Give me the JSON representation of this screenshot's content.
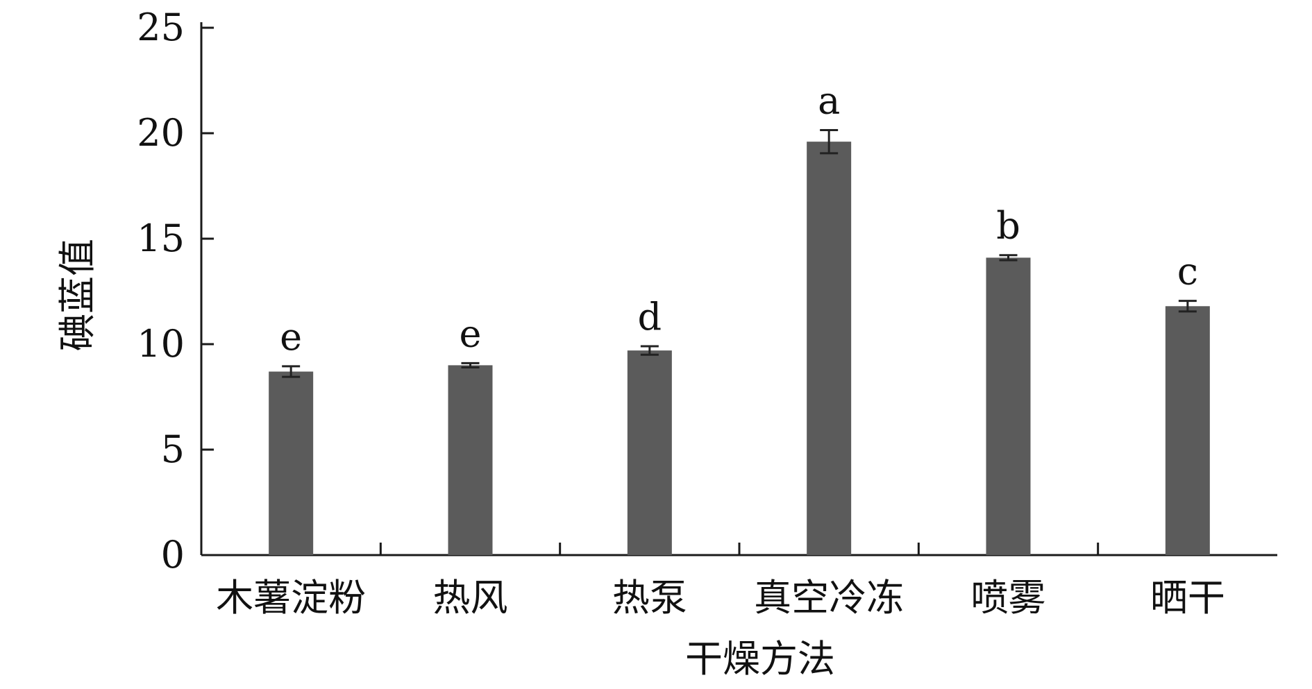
{
  "chart_data": {
    "type": "bar",
    "categories": [
      "木薯淀粉",
      "热风",
      "热泵",
      "真空冷冻",
      "喷雾",
      "晒干"
    ],
    "values": [
      8.7,
      9.0,
      9.7,
      19.6,
      14.1,
      11.8
    ],
    "errors": [
      0.25,
      0.1,
      0.2,
      0.55,
      0.12,
      0.25
    ],
    "significance": [
      "e",
      "e",
      "d",
      "a",
      "b",
      "c"
    ],
    "title": "",
    "xlabel": "干燥方法",
    "ylabel": "碘蓝值",
    "ylim": [
      0,
      25
    ],
    "yticks": [
      0,
      5,
      10,
      15,
      20,
      25
    ],
    "grid": false,
    "bar_color": "#5b5b5b",
    "axis_color": "#1a1a1a"
  }
}
